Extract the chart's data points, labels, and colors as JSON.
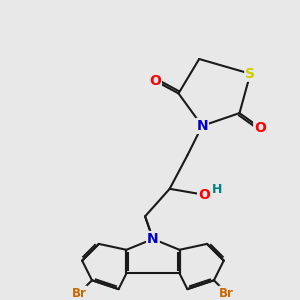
{
  "bg_color": "#e8e8e8",
  "bond_color": "#1a1a1a",
  "bond_width": 1.5,
  "atom_colors": {
    "O": "#ff0000",
    "N": "#0000cc",
    "S": "#cccc00",
    "Br": "#cc6600",
    "H": "#008080",
    "C": "#1a1a1a"
  },
  "font_size_atom": 9,
  "font_size_br": 8.5
}
